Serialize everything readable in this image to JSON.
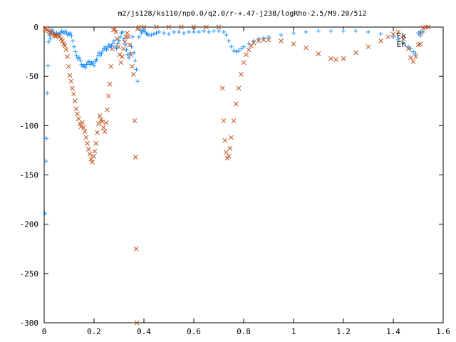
{
  "chart_data": {
    "type": "scatter",
    "title": "m2/js128/ks110/np0.0/q2.0/r-+.47-j238/logRho-2.5/M9.20/512",
    "xlabel": "",
    "ylabel": "",
    "xlim": [
      0,
      1.6
    ],
    "ylim": [
      -300,
      0
    ],
    "xticks": [
      "0",
      "0.2",
      "0.4",
      "0.6",
      "0.8",
      "1",
      "1.2",
      "1.4",
      "1.6"
    ],
    "yticks": [
      "0",
      "-50",
      "-100",
      "-150",
      "-200",
      "-250",
      "-300"
    ],
    "grid": false,
    "legend_position": "top-right",
    "series": [
      {
        "name": "Ek",
        "marker": "+",
        "color": "#1e90ff",
        "points": [
          [
            0.003,
            -189
          ],
          [
            0.006,
            -136
          ],
          [
            0.009,
            -113
          ],
          [
            0.012,
            -67
          ],
          [
            0.015,
            -39
          ],
          [
            0.018,
            -15
          ],
          [
            0.021,
            -8
          ],
          [
            0.024,
            -12
          ],
          [
            0.028,
            -5
          ],
          [
            0.032,
            -3
          ],
          [
            0.036,
            -5
          ],
          [
            0.04,
            -7
          ],
          [
            0.045,
            -8
          ],
          [
            0.05,
            -6
          ],
          [
            0.055,
            -7
          ],
          [
            0.06,
            -7
          ],
          [
            0.065,
            -6
          ],
          [
            0.07,
            -4
          ],
          [
            0.075,
            -5
          ],
          [
            0.08,
            -6
          ],
          [
            0.085,
            -4
          ],
          [
            0.09,
            -6
          ],
          [
            0.095,
            -8
          ],
          [
            0.1,
            -7
          ],
          [
            0.105,
            -6
          ],
          [
            0.11,
            -9
          ],
          [
            0.115,
            -14
          ],
          [
            0.12,
            -20
          ],
          [
            0.125,
            -25
          ],
          [
            0.13,
            -29
          ],
          [
            0.135,
            -32
          ],
          [
            0.14,
            -31
          ],
          [
            0.145,
            -34
          ],
          [
            0.15,
            -38
          ],
          [
            0.155,
            -40
          ],
          [
            0.16,
            -39
          ],
          [
            0.165,
            -41
          ],
          [
            0.17,
            -38
          ],
          [
            0.175,
            -36
          ],
          [
            0.18,
            -35
          ],
          [
            0.185,
            -38
          ],
          [
            0.19,
            -36
          ],
          [
            0.195,
            -37
          ],
          [
            0.2,
            -39
          ],
          [
            0.205,
            -35
          ],
          [
            0.21,
            -33
          ],
          [
            0.215,
            -29
          ],
          [
            0.22,
            -26
          ],
          [
            0.225,
            -29
          ],
          [
            0.23,
            -27
          ],
          [
            0.235,
            -24
          ],
          [
            0.24,
            -22
          ],
          [
            0.245,
            -20
          ],
          [
            0.25,
            -23
          ],
          [
            0.255,
            -21
          ],
          [
            0.26,
            -18
          ],
          [
            0.265,
            -20
          ],
          [
            0.27,
            -19
          ],
          [
            0.275,
            -17
          ],
          [
            0.28,
            -14
          ],
          [
            0.285,
            -20
          ],
          [
            0.29,
            -22
          ],
          [
            0.295,
            -17
          ],
          [
            0.3,
            -14
          ],
          [
            0.305,
            -10
          ],
          [
            0.31,
            -6
          ],
          [
            0.315,
            -5
          ],
          [
            0.32,
            -12
          ],
          [
            0.325,
            -18
          ],
          [
            0.33,
            -23
          ],
          [
            0.335,
            -28
          ],
          [
            0.34,
            -31
          ],
          [
            0.345,
            -26
          ],
          [
            0.35,
            -20
          ],
          [
            0.355,
            -10
          ],
          [
            0.36,
            -26
          ],
          [
            0.365,
            -34
          ],
          [
            0.37,
            -43
          ],
          [
            0.375,
            -55
          ],
          [
            0.38,
            -10
          ],
          [
            0.385,
            -3
          ],
          [
            0.39,
            -6
          ],
          [
            0.395,
            -4
          ],
          [
            0.4,
            -3
          ],
          [
            0.405,
            -5
          ],
          [
            0.41,
            -7
          ],
          [
            0.415,
            -7
          ],
          [
            0.42,
            -8
          ],
          [
            0.43,
            -8
          ],
          [
            0.44,
            -7
          ],
          [
            0.45,
            -6
          ],
          [
            0.46,
            -5
          ],
          [
            0.48,
            -6
          ],
          [
            0.5,
            -7
          ],
          [
            0.52,
            -5
          ],
          [
            0.54,
            -5
          ],
          [
            0.56,
            -6
          ],
          [
            0.58,
            -5
          ],
          [
            0.6,
            -5
          ],
          [
            0.62,
            -5
          ],
          [
            0.64,
            -4
          ],
          [
            0.66,
            -5
          ],
          [
            0.68,
            -4
          ],
          [
            0.7,
            -4
          ],
          [
            0.72,
            -5
          ],
          [
            0.73,
            -8
          ],
          [
            0.74,
            -14
          ],
          [
            0.75,
            -20
          ],
          [
            0.76,
            -24
          ],
          [
            0.77,
            -25
          ],
          [
            0.78,
            -24
          ],
          [
            0.79,
            -22
          ],
          [
            0.8,
            -20
          ],
          [
            0.82,
            -17
          ],
          [
            0.84,
            -14
          ],
          [
            0.86,
            -12
          ],
          [
            0.88,
            -11
          ],
          [
            0.9,
            -10
          ],
          [
            0.95,
            -8
          ],
          [
            1.0,
            -6
          ],
          [
            1.05,
            -5
          ],
          [
            1.1,
            -4
          ],
          [
            1.15,
            -4
          ],
          [
            1.2,
            -4
          ],
          [
            1.25,
            -4
          ],
          [
            1.3,
            -5
          ],
          [
            1.35,
            -7
          ],
          [
            1.4,
            -10
          ],
          [
            1.42,
            -13
          ],
          [
            1.44,
            -16
          ],
          [
            1.46,
            -20
          ],
          [
            1.47,
            -22
          ],
          [
            1.48,
            -25
          ],
          [
            1.49,
            -27
          ],
          [
            1.5,
            -6
          ],
          [
            1.51,
            -5
          ],
          [
            1.52,
            -5
          ]
        ]
      },
      {
        "name": "Eh",
        "marker": "x",
        "color": "#c0501e",
        "points": [
          [
            0.003,
            -2
          ],
          [
            0.008,
            -1
          ],
          [
            0.013,
            -3
          ],
          [
            0.018,
            -4
          ],
          [
            0.023,
            -5
          ],
          [
            0.028,
            -6
          ],
          [
            0.033,
            -7
          ],
          [
            0.038,
            -8
          ],
          [
            0.043,
            -9
          ],
          [
            0.048,
            -9
          ],
          [
            0.053,
            -8
          ],
          [
            0.058,
            -9
          ],
          [
            0.063,
            -10
          ],
          [
            0.068,
            -12
          ],
          [
            0.073,
            -14
          ],
          [
            0.078,
            -17
          ],
          [
            0.083,
            -19
          ],
          [
            0.088,
            -23
          ],
          [
            0.093,
            -30
          ],
          [
            0.098,
            -40
          ],
          [
            0.103,
            -49
          ],
          [
            0.108,
            -55
          ],
          [
            0.113,
            -62
          ],
          [
            0.118,
            -68
          ],
          [
            0.123,
            -75
          ],
          [
            0.128,
            -83
          ],
          [
            0.133,
            -88
          ],
          [
            0.138,
            -93
          ],
          [
            0.143,
            -98
          ],
          [
            0.148,
            -101
          ],
          [
            0.153,
            -97
          ],
          [
            0.158,
            -102
          ],
          [
            0.163,
            -106
          ],
          [
            0.168,
            -112
          ],
          [
            0.173,
            -118
          ],
          [
            0.178,
            -124
          ],
          [
            0.183,
            -129
          ],
          [
            0.188,
            -134
          ],
          [
            0.193,
            -137
          ],
          [
            0.198,
            -131
          ],
          [
            0.203,
            -126
          ],
          [
            0.208,
            -118
          ],
          [
            0.213,
            -107
          ],
          [
            0.218,
            -98
          ],
          [
            0.223,
            -90
          ],
          [
            0.228,
            -94
          ],
          [
            0.233,
            -96
          ],
          [
            0.238,
            -102
          ],
          [
            0.243,
            -106
          ],
          [
            0.248,
            -97
          ],
          [
            0.253,
            -84
          ],
          [
            0.258,
            -70
          ],
          [
            0.263,
            -58
          ],
          [
            0.268,
            -40
          ],
          [
            0.273,
            -22
          ],
          [
            0.278,
            -3
          ],
          [
            0.283,
            -2
          ],
          [
            0.288,
            -5
          ],
          [
            0.293,
            -12
          ],
          [
            0.298,
            -20
          ],
          [
            0.303,
            -28
          ],
          [
            0.308,
            -36
          ],
          [
            0.313,
            -30
          ],
          [
            0.318,
            -22
          ],
          [
            0.323,
            -15
          ],
          [
            0.328,
            -10
          ],
          [
            0.333,
            -6
          ],
          [
            0.338,
            -10
          ],
          [
            0.343,
            -18
          ],
          [
            0.348,
            -28
          ],
          [
            0.353,
            -40
          ],
          [
            0.358,
            -48
          ],
          [
            0.363,
            -95
          ],
          [
            0.366,
            -132
          ],
          [
            0.369,
            -225
          ],
          [
            0.372,
            -300
          ],
          [
            0.375,
            -2
          ],
          [
            0.38,
            0
          ],
          [
            0.4,
            0
          ],
          [
            0.45,
            0
          ],
          [
            0.5,
            0
          ],
          [
            0.55,
            0
          ],
          [
            0.6,
            0
          ],
          [
            0.65,
            0
          ],
          [
            0.7,
            0
          ],
          [
            0.715,
            -62
          ],
          [
            0.72,
            -95
          ],
          [
            0.725,
            -115
          ],
          [
            0.73,
            -127
          ],
          [
            0.735,
            -133
          ],
          [
            0.74,
            -131
          ],
          [
            0.745,
            -123
          ],
          [
            0.75,
            -112
          ],
          [
            0.76,
            -95
          ],
          [
            0.77,
            -78
          ],
          [
            0.78,
            -62
          ],
          [
            0.79,
            -48
          ],
          [
            0.8,
            -36
          ],
          [
            0.81,
            -28
          ],
          [
            0.82,
            -23
          ],
          [
            0.83,
            -19
          ],
          [
            0.84,
            -16
          ],
          [
            0.86,
            -14
          ],
          [
            0.88,
            -13
          ],
          [
            0.9,
            -13
          ],
          [
            0.95,
            -14
          ],
          [
            1.0,
            -17
          ],
          [
            1.05,
            -21
          ],
          [
            1.1,
            -27
          ],
          [
            1.15,
            -32
          ],
          [
            1.17,
            -33
          ],
          [
            1.2,
            -32
          ],
          [
            1.25,
            -26
          ],
          [
            1.3,
            -20
          ],
          [
            1.35,
            -14
          ],
          [
            1.38,
            -10
          ],
          [
            1.4,
            -7
          ],
          [
            1.42,
            -5
          ],
          [
            1.44,
            -12
          ],
          [
            1.46,
            -22
          ],
          [
            1.47,
            -31
          ],
          [
            1.48,
            -35
          ],
          [
            1.49,
            -30
          ],
          [
            1.5,
            -18
          ],
          [
            1.51,
            -6
          ],
          [
            1.52,
            -1
          ],
          [
            1.53,
            0
          ],
          [
            1.54,
            0
          ]
        ]
      }
    ]
  }
}
